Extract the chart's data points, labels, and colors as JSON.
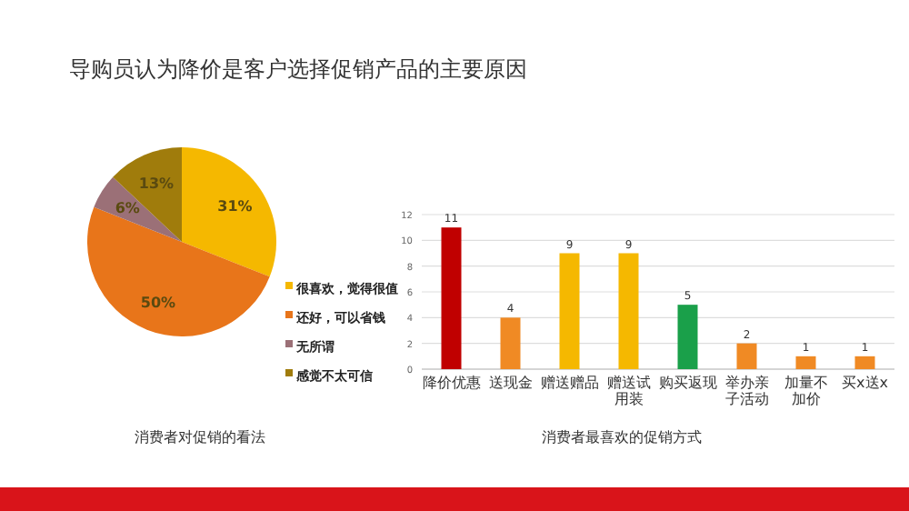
{
  "chart_data": [
    {
      "type": "pie",
      "title": "导购员认为降价是客户选择促销产品的主要原因",
      "annotations": [
        "消费者对促销的看法"
      ],
      "legend": "right",
      "categories": [
        "很喜欢，觉得很值",
        "还好，可以省钱",
        "无所谓",
        "感觉不太可信"
      ],
      "values": [
        31,
        50,
        6,
        13
      ],
      "colors": [
        "#f5b800",
        "#e8751a",
        "#9b7077",
        "#a07c0c"
      ],
      "value_labels": [
        "31%",
        "50%",
        "6%",
        "13%"
      ]
    },
    {
      "type": "bar",
      "xlabel": "消费者最喜欢的促销方式",
      "categories": [
        "降价优惠",
        "送现金",
        "赠送赠品",
        "赠送试用装",
        "购买返现",
        "举办亲子活动",
        "加量不加价",
        "买x送x"
      ],
      "values": [
        11,
        4,
        9,
        9,
        5,
        2,
        1,
        1
      ],
      "colors": [
        "#c00000",
        "#f08a24",
        "#f5b800",
        "#f5b800",
        "#1aa04a",
        "#f08a24",
        "#f08a24",
        "#f08a24"
      ],
      "ylim": [
        0,
        12
      ],
      "yticks": [
        0,
        2,
        4,
        6,
        8,
        10,
        12
      ],
      "grid": "y",
      "data_labels": true
    }
  ]
}
